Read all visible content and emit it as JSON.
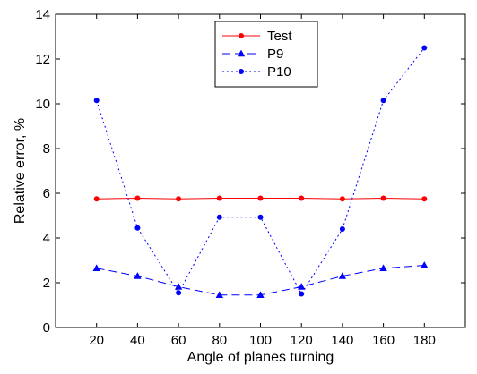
{
  "chart_data": {
    "type": "line",
    "xlabel": "Angle of planes turning",
    "ylabel": "Relative error, %",
    "x": [
      20,
      40,
      60,
      80,
      100,
      120,
      140,
      160,
      180
    ],
    "xlim": [
      0,
      200
    ],
    "ylim": [
      0,
      14
    ],
    "xticks": [
      20,
      40,
      60,
      80,
      100,
      120,
      140,
      160,
      180
    ],
    "yticks": [
      0,
      2,
      4,
      6,
      8,
      10,
      12,
      14
    ],
    "grid": false,
    "legend_position": "top-center",
    "series": [
      {
        "name": "Test",
        "color": "#ff0000",
        "line_style": "solid",
        "marker": "dot",
        "values": [
          5.75,
          5.78,
          5.75,
          5.78,
          5.78,
          5.78,
          5.75,
          5.78,
          5.75
        ]
      },
      {
        "name": "P9",
        "color": "#0000ff",
        "line_style": "dashed",
        "marker": "triangle",
        "values": [
          2.65,
          2.3,
          1.82,
          1.45,
          1.45,
          1.82,
          2.3,
          2.65,
          2.78
        ]
      },
      {
        "name": "P10",
        "color": "#0000ff",
        "line_style": "dotted",
        "marker": "dot",
        "values": [
          10.15,
          4.45,
          1.55,
          4.93,
          4.93,
          1.5,
          4.4,
          10.15,
          12.5
        ]
      }
    ]
  }
}
